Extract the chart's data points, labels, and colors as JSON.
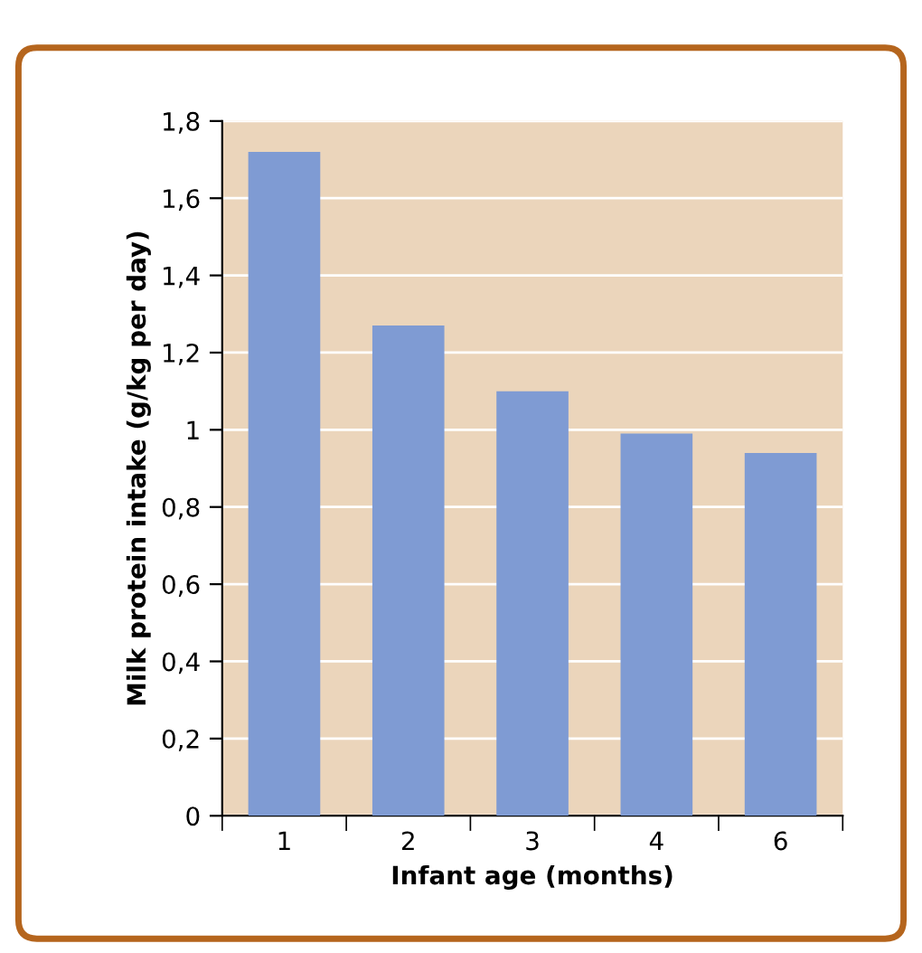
{
  "chart_data": {
    "type": "bar",
    "xlabel": "Infant age (months)",
    "ylabel": "Milk protein intake (g/kg per day)",
    "categories": [
      "1",
      "2",
      "3",
      "4",
      "6"
    ],
    "values": [
      1.72,
      1.27,
      1.1,
      0.99,
      0.94
    ],
    "color": "#7f9bd3",
    "ylim": [
      0,
      1.8
    ],
    "yticks": [
      0,
      {
        "value": 0.2,
        "label": "0,2"
      },
      {
        "value": 0.4,
        "label": "0,4"
      },
      {
        "value": 0.6,
        "label": "0,6"
      },
      {
        "value": 0.8,
        "label": "0,8"
      },
      1,
      {
        "value": 1.2,
        "label": "1,2"
      },
      {
        "value": 1.4,
        "label": "1,4"
      },
      {
        "value": 1.6,
        "label": "1,6"
      },
      {
        "value": 1.8,
        "label": "1,8"
      }
    ],
    "grid": "y"
  }
}
